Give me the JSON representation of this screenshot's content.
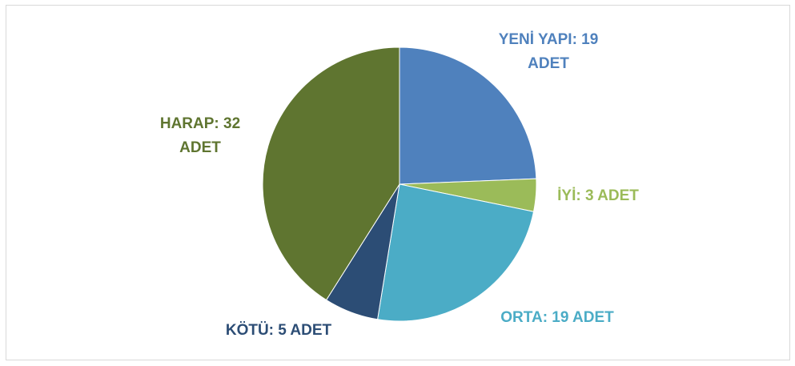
{
  "chart_data": {
    "type": "pie",
    "values": [
      19,
      3,
      19,
      5,
      32
    ],
    "value_labels": [
      "YENİ YAPI: 19 ADET",
      "İYİ: 3 ADET",
      "ORTA: 19 ADET",
      "KÖTÜ: 5 ADET",
      "HARAP: 32 ADET"
    ],
    "colors": [
      "#4f81bd",
      "#9bbb59",
      "#4bacc6",
      "#2c4d75",
      "#5f7530"
    ]
  }
}
